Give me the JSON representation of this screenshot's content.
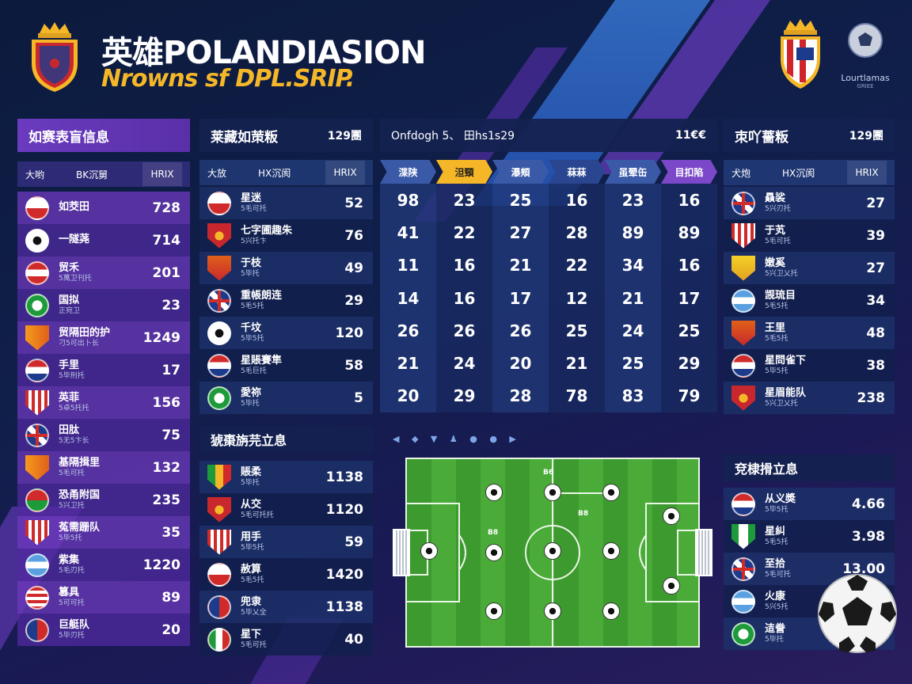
{
  "header": {
    "title": "英雄POLANDIASION",
    "subtitle": "Nrowns sf DPL.SRIP.",
    "league_text_1": "Lourtlamas",
    "league_text_2": "GRIEE"
  },
  "panel_left": {
    "title": "如赛表盲信息",
    "col1": "大哟",
    "col2": "BK沉舅",
    "col3": "HRIX",
    "rows": [
      {
        "name": "如茭田",
        "sub": "",
        "value": "728",
        "icon": "flag-red-white"
      },
      {
        "name": "一隧荛",
        "sub": "",
        "value": "714",
        "icon": "soccer-ball"
      },
      {
        "name": "贸禾",
        "sub": "5萬卫刊托",
        "value": "201",
        "icon": "flag-red-white-stripe"
      },
      {
        "name": "国拟",
        "sub": "正宛卫",
        "value": "23",
        "icon": "flag-green-white"
      },
      {
        "name": "贸隔田的护",
        "sub": "刁5可出卜长",
        "value": "1249",
        "icon": "shield-orange"
      },
      {
        "name": "手里",
        "sub": "5毕刑托",
        "value": "17",
        "icon": "flag-red-white-blue"
      },
      {
        "name": "英菲",
        "sub": "5卓5托托",
        "value": "156",
        "icon": "shield-red-stripes"
      },
      {
        "name": "田肽",
        "sub": "5无5卞长",
        "value": "75",
        "icon": "flag-union-jack"
      },
      {
        "name": "基隔揖里",
        "sub": "5毛可托",
        "value": "132",
        "icon": "shield-orange"
      },
      {
        "name": "恐甬附国",
        "sub": "5兴卫托",
        "value": "235",
        "icon": "flag-red-green"
      },
      {
        "name": "菟需跚队",
        "sub": "5毕5托",
        "value": "35",
        "icon": "shield-red-stripes"
      },
      {
        "name": "紫集",
        "sub": "5毛刃托",
        "value": "1220",
        "icon": "flag-blue-white"
      },
      {
        "name": "篡具",
        "sub": "5可可托",
        "value": "89",
        "icon": "flag-usa"
      },
      {
        "name": "巨艇队",
        "sub": "5毕刃托",
        "value": "20",
        "icon": "flag-red-blue"
      }
    ]
  },
  "panel_mid": {
    "title": "莱藏如茦粄",
    "num": "129團",
    "col1": "大放",
    "col2": "HX沉阂",
    "col3": "HRIX",
    "rows": [
      {
        "name": "星迷",
        "sub": "5毛可托",
        "value": "52",
        "icon": "flag-red-white"
      },
      {
        "name": "七字圃趣朱",
        "sub": "5兴托卞",
        "value": "76",
        "icon": "shield-red"
      },
      {
        "name": "于枝",
        "sub": "5毕托",
        "value": "49",
        "icon": "shield-red-orange"
      },
      {
        "name": "重帳朗连",
        "sub": "5毛5托",
        "value": "29",
        "icon": "flag-union-jack"
      },
      {
        "name": "千坟",
        "sub": "5毕5托",
        "value": "120",
        "icon": "soccer-ball"
      },
      {
        "name": "星賬賽隼",
        "sub": "5毛巨托",
        "value": "58",
        "icon": "flag-red-white-blue"
      },
      {
        "name": "愛祢",
        "sub": "5毕托",
        "value": "5",
        "icon": "flag-green-white"
      }
    ]
  },
  "panel_mid2": {
    "title": "猇棗旃芫立息",
    "rows": [
      {
        "name": "賬柔",
        "sub": "5毕托",
        "value": "1138",
        "icon": "shield-multi"
      },
      {
        "name": "从交",
        "sub": "5毛可托托",
        "value": "1120",
        "icon": "shield-red"
      },
      {
        "name": "用手",
        "sub": "5毕5托",
        "value": "59",
        "icon": "shield-red-stripes"
      },
      {
        "name": "赦算",
        "sub": "5毛5托",
        "value": "1420",
        "icon": "flag-red-white"
      },
      {
        "name": "兜隶",
        "sub": "5毕乂全",
        "value": "1138",
        "icon": "flag-red-blue"
      },
      {
        "name": "星下",
        "sub": "5毛可托",
        "value": "40",
        "icon": "flag-italy"
      }
    ]
  },
  "matrix": {
    "title": "Onfdogh 5、 田hs1s29",
    "num": "11€€",
    "heads": [
      "渫陕",
      "泹頸",
      "瀑頬",
      "菻菻",
      "虽翚缶",
      "目扣陷"
    ],
    "rows": [
      [
        "98",
        "23",
        "25",
        "16",
        "23",
        "16"
      ],
      [
        "41",
        "22",
        "27",
        "28",
        "89",
        "89"
      ],
      [
        "11",
        "16",
        "21",
        "22",
        "34",
        "16"
      ],
      [
        "14",
        "16",
        "17",
        "12",
        "21",
        "17"
      ],
      [
        "26",
        "26",
        "26",
        "25",
        "24",
        "25"
      ],
      [
        "21",
        "24",
        "20",
        "21",
        "25",
        "29"
      ],
      [
        "20",
        "29",
        "28",
        "78",
        "83",
        "79"
      ]
    ]
  },
  "panel_right": {
    "title": "朿吖薔粄",
    "num": "129團",
    "col1": "犬炮",
    "col2": "HX沉阂",
    "col3": "HRIX",
    "rows": [
      {
        "name": "贔裟",
        "sub": "5兴刃托",
        "value": "27",
        "icon": "flag-union-jack"
      },
      {
        "name": "于芄",
        "sub": "5毛可托",
        "value": "39",
        "icon": "shield-red-stripes"
      },
      {
        "name": "嫩奚",
        "sub": "5兴卫乂托",
        "value": "27",
        "icon": "shield-yellow"
      },
      {
        "name": "觊琉目",
        "sub": "5毛5托",
        "value": "34",
        "icon": "flag-blue-white"
      },
      {
        "name": "王里",
        "sub": "5毛5托",
        "value": "48",
        "icon": "shield-red-orange"
      },
      {
        "name": "星問雀下",
        "sub": "5毕5托",
        "value": "38",
        "icon": "flag-red-white-blue"
      },
      {
        "name": "星眉能队",
        "sub": "5兴卫乂托",
        "value": "238",
        "icon": "shield-red"
      }
    ]
  },
  "panel_right2": {
    "title": "兗棣搰立息",
    "rows": [
      {
        "name": "从义奬",
        "sub": "5毕5托",
        "value": "4.66",
        "icon": "flag-red-white-blue"
      },
      {
        "name": "星糾",
        "sub": "5毛5托",
        "value": "3.98",
        "icon": "shield-green-white"
      },
      {
        "name": "至拾",
        "sub": "5毛可托",
        "value": "13.00",
        "icon": "flag-union-jack"
      },
      {
        "name": "火康",
        "sub": "5兴5托",
        "value": "",
        "icon": "flag-blue-white"
      },
      {
        "name": "迼誊",
        "sub": "5毕托",
        "value": "",
        "icon": "flag-green-white"
      }
    ]
  },
  "pitch": {
    "labels": [
      "B6",
      "B8",
      "B8"
    ]
  },
  "colors": {
    "accent_orange": "#f5b728",
    "accent_purple": "#6a3bbf",
    "pitch_green": "#3d9a2f"
  }
}
